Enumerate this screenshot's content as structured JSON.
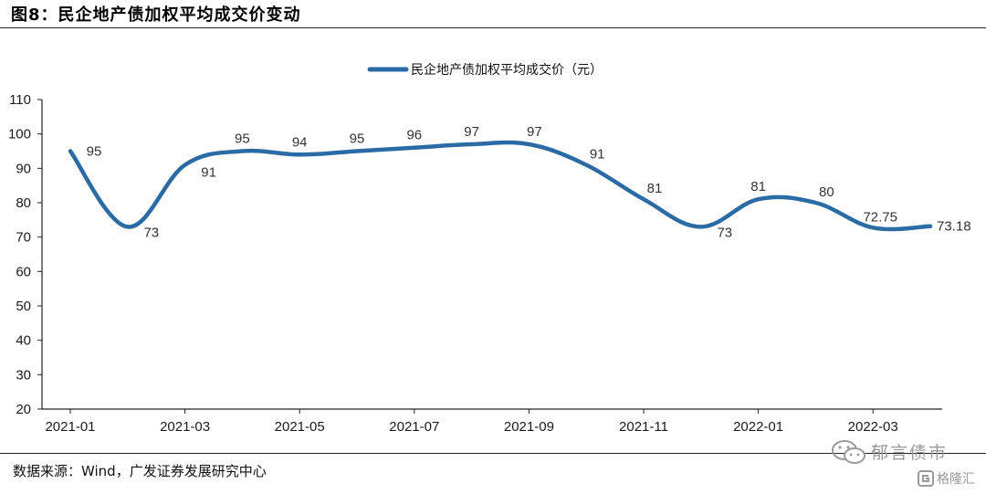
{
  "figure": {
    "title": "图8：民企地产债加权平均成交价变动",
    "source": "数据来源：Wind，广发证券发展研究中心",
    "watermark_primary": "郁言债市",
    "watermark_secondary": "格隆汇"
  },
  "chart_data": {
    "type": "line",
    "title": "",
    "xlabel": "",
    "ylabel": "",
    "ylim": [
      20,
      110
    ],
    "yticks": [
      20,
      30,
      40,
      50,
      60,
      70,
      80,
      90,
      100,
      110
    ],
    "x_tick_labels": [
      "2021-01",
      "2021-03",
      "2021-05",
      "2021-07",
      "2021-09",
      "2021-11",
      "2022-01",
      "2022-03"
    ],
    "categories": [
      "2021-01",
      "2021-02",
      "2021-03",
      "2021-04",
      "2021-05",
      "2021-06",
      "2021-07",
      "2021-08",
      "2021-09",
      "2021-10",
      "2021-11",
      "2021-12",
      "2022-01",
      "2022-02",
      "2022-03",
      "2022-04"
    ],
    "series": [
      {
        "name": "民企地产债加权平均成交价（元）",
        "color": "#2A6BA5",
        "values": [
          95,
          73,
          91,
          95,
          94,
          95,
          96,
          97,
          97,
          91,
          81,
          73,
          81,
          80,
          72.75,
          73.18
        ],
        "labels": [
          "95",
          "73",
          "91",
          "95",
          "94",
          "95",
          "96",
          "97",
          "97",
          "91",
          "81",
          "73",
          "81",
          "80",
          "72.75",
          "73.18"
        ]
      }
    ],
    "grid": false,
    "legend_position": "top-center"
  }
}
